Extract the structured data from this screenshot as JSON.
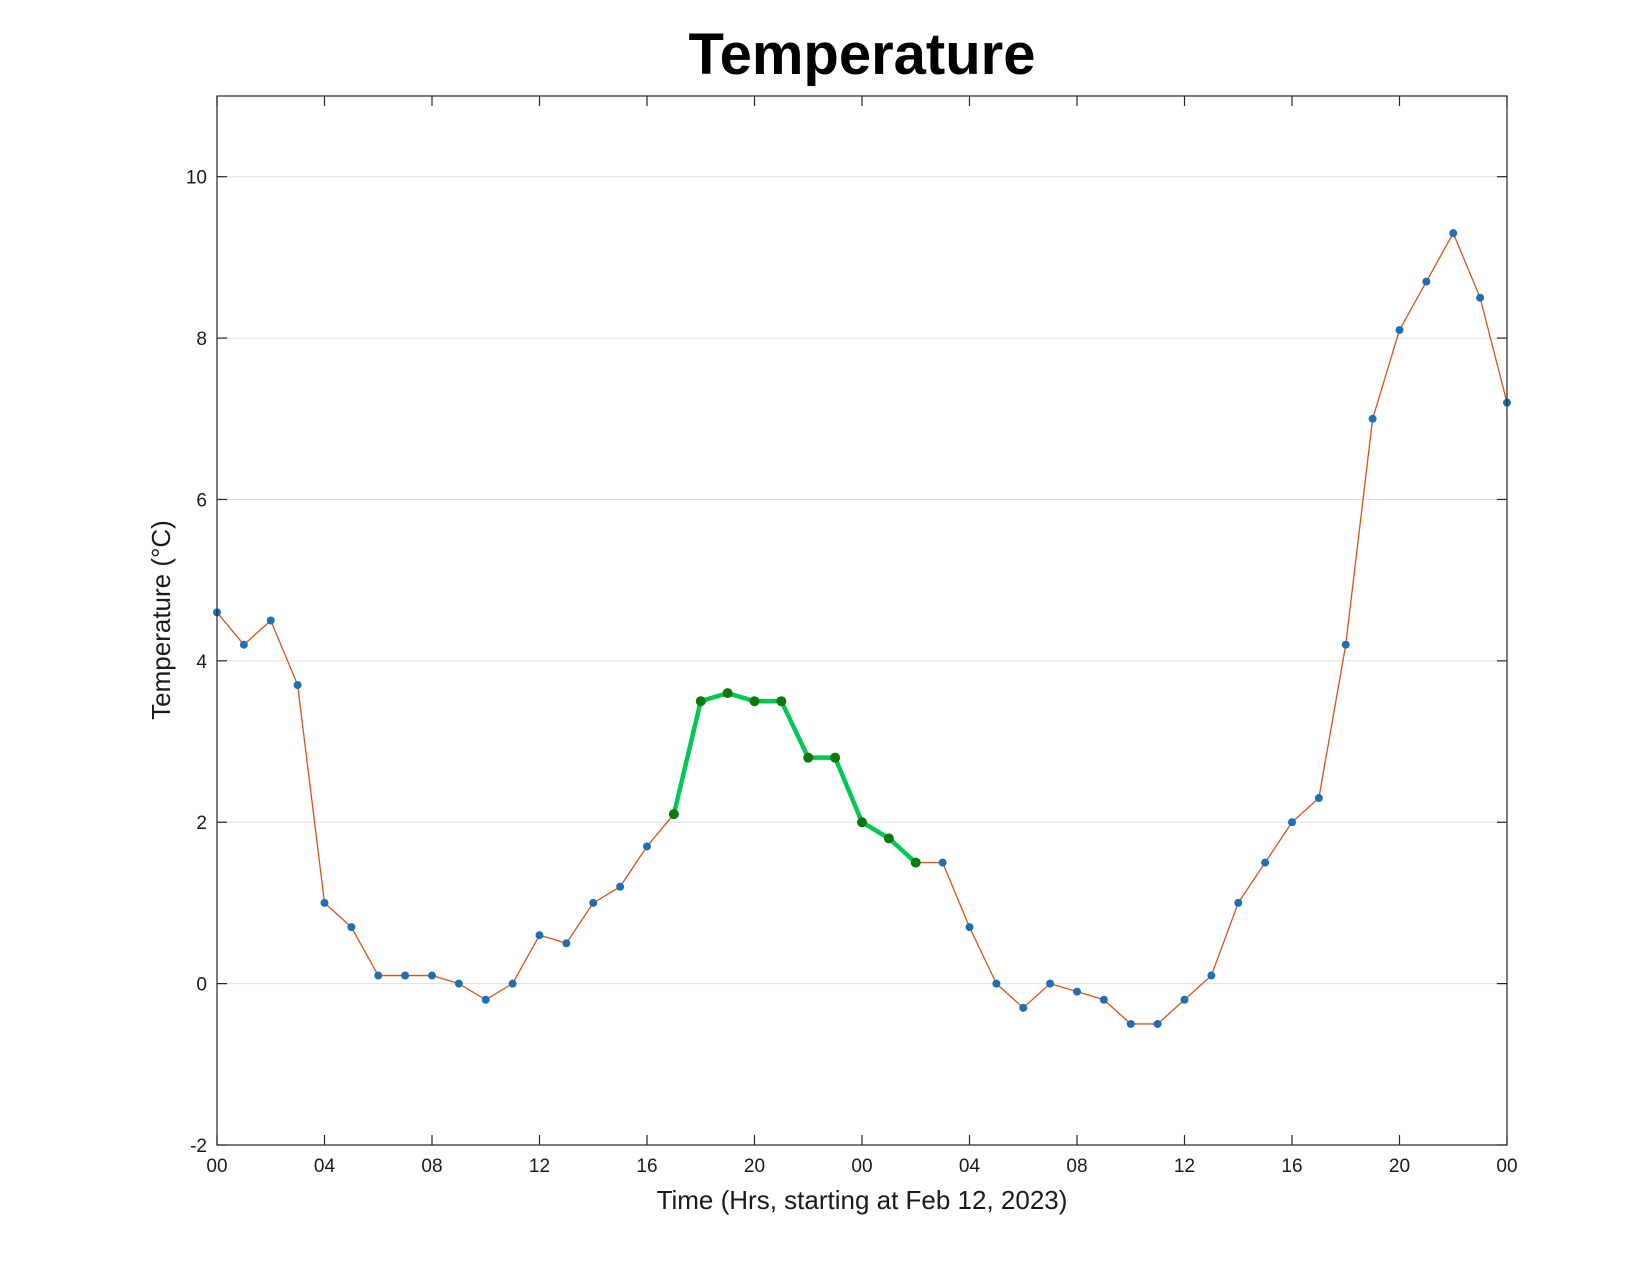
{
  "chart_data": {
    "type": "line",
    "title": "Temperature",
    "xlabel": "Time (Hrs, starting at Feb 12, 2023)",
    "ylabel": "Temperature (°C)",
    "ylim": [
      -2,
      11
    ],
    "xlim": [
      "2023-02-12 00:00",
      "2023-02-14 00:00"
    ],
    "yticks": [
      -2,
      0,
      2,
      4,
      6,
      8,
      10
    ],
    "xtick_labels": [
      "00",
      "04",
      "08",
      "12",
      "16",
      "20",
      "00",
      "04",
      "08",
      "12",
      "16",
      "20",
      "00"
    ],
    "grid": "y",
    "colors": {
      "line": "#d95319",
      "marker": "#1f6fb5",
      "highlight_line": "#00c853",
      "highlight_marker": "#0b7a0b"
    },
    "series": [
      {
        "x": [
          "2023-02-12 00:00",
          "2023-02-12 01:00",
          "2023-02-12 02:00",
          "2023-02-12 03:00",
          "2023-02-12 04:00",
          "2023-02-12 05:00",
          "2023-02-12 06:00",
          "2023-02-12 07:00",
          "2023-02-12 08:00",
          "2023-02-12 09:00",
          "2023-02-12 10:00",
          "2023-02-12 11:00",
          "2023-02-12 12:00",
          "2023-02-12 13:00",
          "2023-02-12 14:00",
          "2023-02-12 15:00",
          "2023-02-12 16:00",
          "2023-02-12 17:00",
          "2023-02-12 18:00",
          "2023-02-12 19:00",
          "2023-02-12 20:00",
          "2023-02-12 21:00",
          "2023-02-12 22:00",
          "2023-02-12 23:00",
          "2023-02-13 00:00",
          "2023-02-13 01:00",
          "2023-02-13 02:00",
          "2023-02-13 03:00",
          "2023-02-13 04:00",
          "2023-02-13 05:00",
          "2023-02-13 06:00",
          "2023-02-13 07:00",
          "2023-02-13 08:00",
          "2023-02-13 09:00",
          "2023-02-13 10:00",
          "2023-02-13 11:00",
          "2023-02-13 12:00",
          "2023-02-13 13:00",
          "2023-02-13 14:00",
          "2023-02-13 15:00",
          "2023-02-13 16:00",
          "2023-02-13 17:00",
          "2023-02-13 18:00",
          "2023-02-13 19:00",
          "2023-02-13 20:00",
          "2023-02-13 21:00",
          "2023-02-13 22:00",
          "2023-02-13 23:00",
          "2023-02-14 00:00"
        ],
        "values": [
          4.6,
          4.2,
          4.5,
          3.7,
          1.0,
          0.7,
          0.1,
          0.1,
          0.1,
          0.0,
          -0.2,
          0.0,
          0.6,
          0.5,
          1.0,
          1.2,
          1.7,
          2.1,
          3.5,
          3.6,
          3.5,
          3.5,
          2.8,
          2.8,
          2.0,
          1.8,
          1.5,
          1.5,
          0.7,
          0.0,
          -0.3,
          0.0,
          -0.1,
          -0.2,
          -0.5,
          -0.5,
          -0.2,
          0.1,
          1.0,
          1.5,
          2.0,
          2.3,
          4.2,
          7.0,
          8.1,
          8.7,
          9.3,
          8.5,
          7.2
        ]
      },
      {
        "x": [
          "2023-02-12 17:00",
          "2023-02-12 18:00",
          "2023-02-12 19:00",
          "2023-02-12 20:00",
          "2023-02-12 21:00",
          "2023-02-12 22:00",
          "2023-02-12 23:00",
          "2023-02-13 00:00",
          "2023-02-13 01:00",
          "2023-02-13 02:00"
        ],
        "values": [
          2.1,
          3.5,
          3.6,
          3.5,
          3.5,
          2.8,
          2.8,
          2.0,
          1.8,
          1.5
        ]
      }
    ]
  }
}
